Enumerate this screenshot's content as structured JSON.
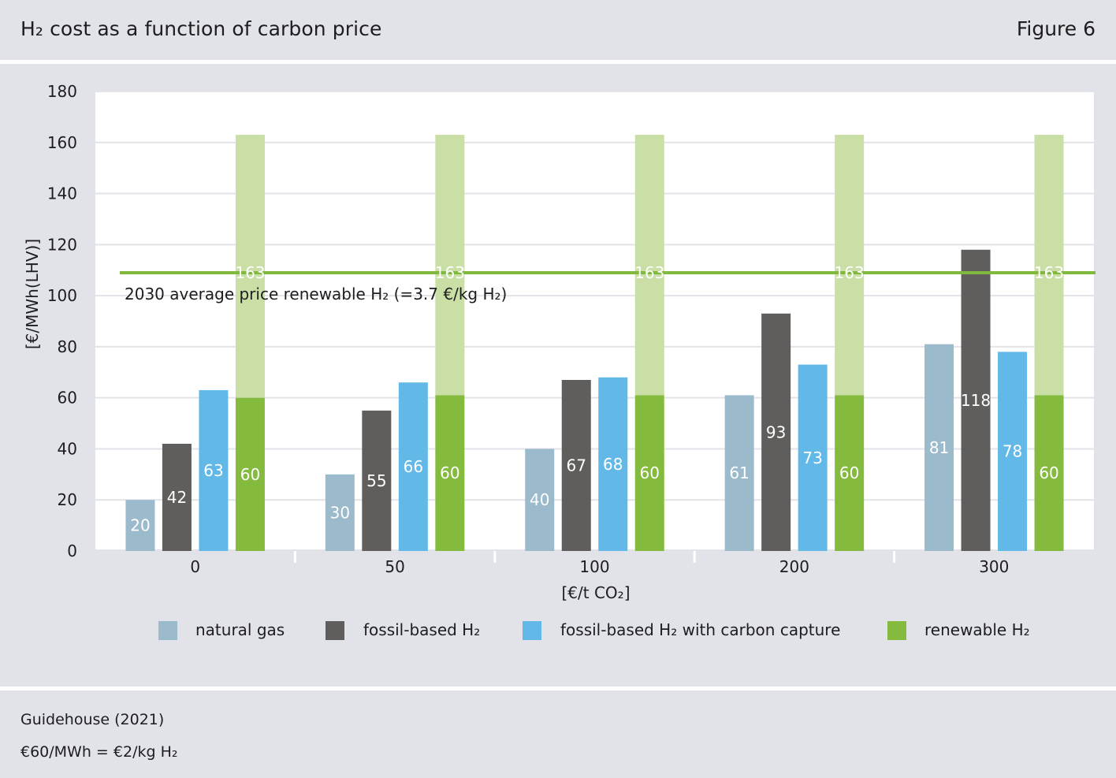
{
  "header": {
    "title": "H₂ cost as a function of carbon price",
    "figure_label": "Figure 6"
  },
  "footer": {
    "source": "Guidehouse (2021)",
    "note": "€60/MWh = €2/kg H₂"
  },
  "colors": {
    "background": "#e2e3e8",
    "plot_background": "#ffffff",
    "natural_gas": "#9bbacc",
    "fossil_h2": "#5f5e5c",
    "fossil_ccs": "#62b9e8",
    "renewable_dark": "#84bb3f",
    "renewable_light": "#c9dfa5",
    "reference_line": "#80b93d",
    "grid": "#ffffff"
  },
  "chart_data": {
    "type": "bar",
    "xlabel": "[€/t CO₂]",
    "ylabel": "[€/MWh(LHV)]",
    "ylim": [
      0,
      180
    ],
    "yticks": [
      0,
      20,
      40,
      60,
      80,
      100,
      120,
      140,
      160,
      180
    ],
    "grid": true,
    "legend_position": "bottom",
    "categories": [
      "0",
      "50",
      "100",
      "200",
      "300"
    ],
    "series": [
      {
        "name": "natural gas",
        "values": [
          20,
          30,
          40,
          61,
          81
        ],
        "color_key": "natural_gas"
      },
      {
        "name": "fossil-based H₂",
        "values": [
          42,
          55,
          67,
          93,
          118
        ],
        "color_key": "fossil_h2"
      },
      {
        "name": "fossil-based H₂ with carbon capture",
        "values": [
          63,
          66,
          68,
          73,
          78
        ],
        "color_key": "fossil_ccs"
      },
      {
        "name": "renewable H₂",
        "values": [
          60,
          60,
          60,
          60,
          60
        ],
        "range_top": [
          163,
          163,
          163,
          163,
          163
        ],
        "color_key": "renewable_dark"
      }
    ],
    "renewable_bar_top_values": [
      60,
      61,
      61,
      61,
      61
    ],
    "reference_line": {
      "value": 109,
      "label": "2030 average price renewable H₂ (=3.7 €/kg H₂)"
    }
  }
}
